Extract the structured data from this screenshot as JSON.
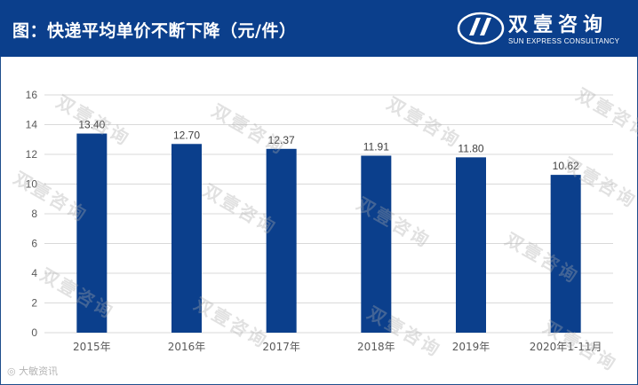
{
  "header": {
    "title": "图：快递平均单价不断下降（元/件）",
    "brand_cn": "双壹咨询",
    "brand_en": "SUN EXPRESS CONSULTANCY",
    "background": "#0b3f8c"
  },
  "watermark": {
    "text": "双壹咨询"
  },
  "footer": {
    "weibo": "大敏资讯"
  },
  "chart_data": {
    "type": "bar",
    "categories": [
      "2015年",
      "2016年",
      "2017年",
      "2018年",
      "2019年",
      "2020年1-11月"
    ],
    "values": [
      13.4,
      12.7,
      12.37,
      11.91,
      11.8,
      10.62
    ],
    "value_labels": [
      "13.40",
      "12.70",
      "12.37",
      "11.91",
      "11.80",
      "10.62"
    ],
    "y_ticks": [
      "0",
      "2",
      "4",
      "6",
      "8",
      "10",
      "12",
      "14",
      "16"
    ],
    "ylim": [
      0,
      16
    ],
    "grid": true,
    "bar_color": "#0b3f8c"
  }
}
